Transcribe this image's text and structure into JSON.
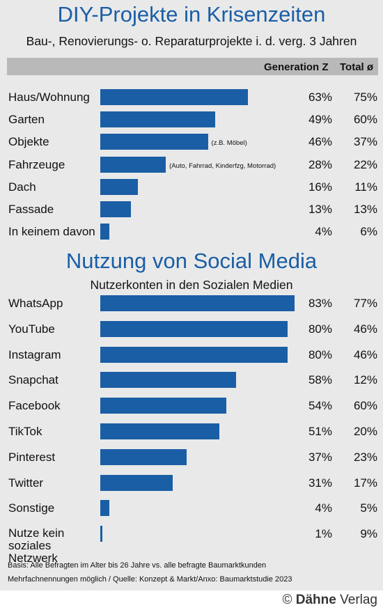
{
  "chart_data": [
    {
      "type": "bar",
      "title": "DIY-Projekte in Krisenzeiten",
      "subtitle": "Bau-, Renovierungs- o. Reparaturprojekte i. d. verg. 3 Jahren",
      "column_headers": [
        "Generation Z",
        "Total ø"
      ],
      "categories": [
        "Haus/Wohnung",
        "Garten",
        "Objekte",
        "Fahrzeuge",
        "Dach",
        "Fassade",
        "In keinem davon"
      ],
      "annotations": [
        "",
        "",
        "(z.B. Möbel)",
        "(Auto, Fahrrad, Kinderfzg, Motorrad)",
        "",
        "",
        ""
      ],
      "series": [
        {
          "name": "Generation Z",
          "values": [
            63,
            49,
            46,
            28,
            16,
            13,
            4
          ]
        },
        {
          "name": "Total ø",
          "values": [
            75,
            60,
            37,
            22,
            11,
            13,
            6
          ]
        }
      ],
      "value_labels": {
        "Generation Z": [
          "63%",
          "49%",
          "46%",
          "28%",
          "16%",
          "13%",
          "4%"
        ],
        "Total ø": [
          "75%",
          "60%",
          "37%",
          "22%",
          "11%",
          "13%",
          "6%"
        ]
      },
      "bar_series": "Generation Z",
      "xlim": [
        0,
        100
      ]
    },
    {
      "type": "bar",
      "title": "Nutzung von Social Media",
      "subtitle": "Nutzerkonten in den Sozialen Medien",
      "categories": [
        "WhatsApp",
        "YouTube",
        "Instagram",
        "Snapchat",
        "Facebook",
        "TikTok",
        "Pinterest",
        "Twitter",
        "Sonstige",
        "Nutze kein soziales Netzwerk"
      ],
      "series": [
        {
          "name": "Generation Z",
          "values": [
            83,
            80,
            80,
            58,
            54,
            51,
            37,
            31,
            4,
            1
          ]
        },
        {
          "name": "Total ø",
          "values": [
            77,
            46,
            46,
            12,
            60,
            20,
            23,
            17,
            5,
            9
          ]
        }
      ],
      "value_labels": {
        "Generation Z": [
          "83%",
          "80%",
          "80%",
          "58%",
          "54%",
          "51%",
          "37%",
          "31%",
          "4%",
          "1%"
        ],
        "Total ø": [
          "77%",
          "46%",
          "46%",
          "12%",
          "60%",
          "20%",
          "23%",
          "17%",
          "5%",
          "9%"
        ]
      },
      "bar_series": "Generation Z",
      "xlim": [
        0,
        100
      ]
    }
  ],
  "footer": {
    "basis": "Basis: Alle Befragten im Alter bis 26 Jahre vs. alle befragte Baumarktkunden",
    "source": "Mehrfachnennungen möglich / Quelle: Konzept & Markt/Anxo: Baumarktstudie 2023"
  },
  "brand": {
    "copyright": "©",
    "name_bold": "Dähne",
    "name_regular": " Verlag"
  },
  "colors": {
    "accent": "#1a5ea5",
    "panel": "#e9e9e9",
    "header_bar": "#b9b9b9"
  }
}
